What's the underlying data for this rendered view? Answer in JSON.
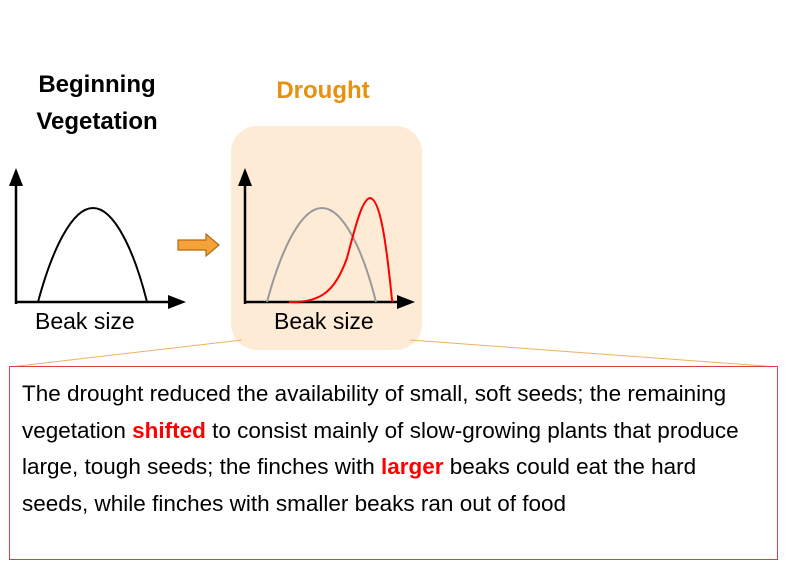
{
  "titles": {
    "beginning_line1": "Beginning",
    "beginning_line2": "Vegetation",
    "drought": "Drought"
  },
  "axis_labels": {
    "left": "Beak size",
    "right": "Beak size"
  },
  "explanation": {
    "part1": "The drought reduced the availability of small, soft seeds; the remaining vegetation ",
    "highlight1": "shifted",
    "part2": " to consist mainly of slow-growing plants that produce large, tough seeds; the finches with ",
    "highlight2": "larger",
    "part3": " beaks could eat the hard seeds, while finches with smaller beaks ran out of food"
  },
  "colors": {
    "drought_title": "#e8900f",
    "drought_panel_bg": "#fdebd6",
    "arrow_fill": "#f5a23a",
    "arrow_stroke": "#b06a10",
    "before_curve": "#999999",
    "after_curve": "#ff0000",
    "connector_line": "#f0b060",
    "highlight_text": "#ff0000",
    "box_border": "#d94040"
  }
}
